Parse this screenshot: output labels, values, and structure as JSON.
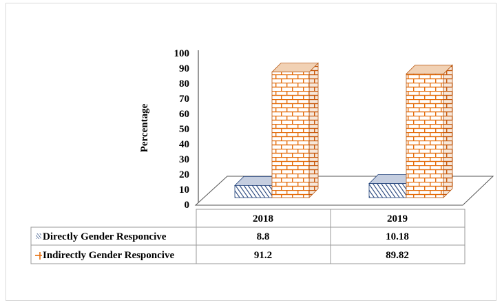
{
  "chart_data": {
    "type": "bar",
    "variant": "3d-clustered-column-with-data-table",
    "categories": [
      "2018",
      "2019"
    ],
    "series": [
      {
        "name": "Directly Gender Responcive",
        "values": [
          8.8,
          10.18
        ],
        "pattern": "diagonal-hatch",
        "color": "#1f3f78"
      },
      {
        "name": "Indirectly Gender Responcive",
        "values": [
          91.2,
          89.82
        ],
        "pattern": "brick",
        "color": "#e46c0a"
      }
    ],
    "ylabel": "Percentage",
    "ylim": [
      0,
      100
    ],
    "yticks": [
      0,
      10,
      20,
      30,
      40,
      50,
      60,
      70,
      80,
      90,
      100
    ],
    "grid": false,
    "legend": "data-table-rows",
    "table": {
      "headers": [
        "2018",
        "2019"
      ],
      "rows": [
        {
          "label": "Directly Gender Responcive",
          "values": [
            "8.8",
            "10.18"
          ]
        },
        {
          "label": "Indirectly Gender Responcive",
          "values": [
            "91.2",
            "89.82"
          ]
        }
      ]
    }
  }
}
